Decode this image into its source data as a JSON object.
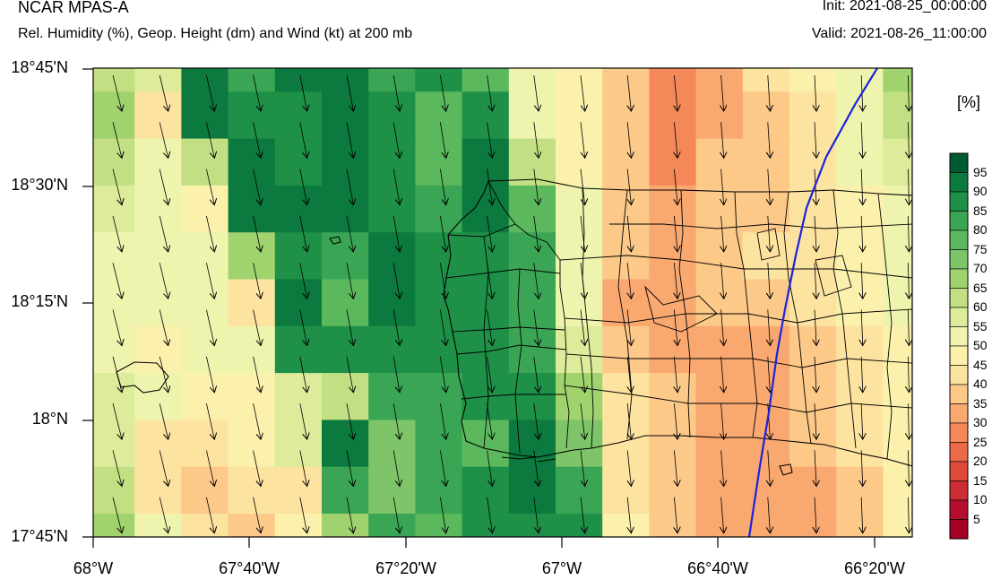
{
  "header": {
    "title": "NCAR MPAS-A",
    "subtitle": "Rel. Humidity (%), Geop. Height (dm) and Wind (kt) at 200 mb",
    "init": "Init: 2021-08-25_00:00:00",
    "valid": "Valid: 2021-08-26_11:00:00"
  },
  "axes": {
    "lat_labels": [
      "18°45'N",
      "18°30'N",
      "18°15'N",
      "18°N",
      "17°45'N"
    ],
    "lon_labels": [
      "68°W",
      "67°40'W",
      "67°20'W",
      "67°W",
      "66°40'W",
      "66°20'W"
    ],
    "lat_range": [
      17.75,
      18.75
    ],
    "lon_range": [
      -68.0,
      -66.28
    ]
  },
  "colorbar": {
    "unit": "[%]",
    "labels": [
      "95",
      "90",
      "85",
      "80",
      "75",
      "70",
      "65",
      "60",
      "55",
      "50",
      "45",
      "40",
      "35",
      "30",
      "25",
      "20",
      "15",
      "10",
      "5"
    ],
    "colors": [
      "#005a32",
      "#0c7a3e",
      "#1e9048",
      "#3aa655",
      "#5cb85c",
      "#7dc568",
      "#a0d26e",
      "#c2e083",
      "#dcec9a",
      "#eef4ae",
      "#fbf1ad",
      "#fde3a0",
      "#fcc989",
      "#f9a870",
      "#f58858",
      "#ec6a4a",
      "#de4a3c",
      "#cc2e34",
      "#b50e2e",
      "#a50026"
    ]
  },
  "colors": {
    "contour": "#1a22e0",
    "border": "#000000"
  }
}
